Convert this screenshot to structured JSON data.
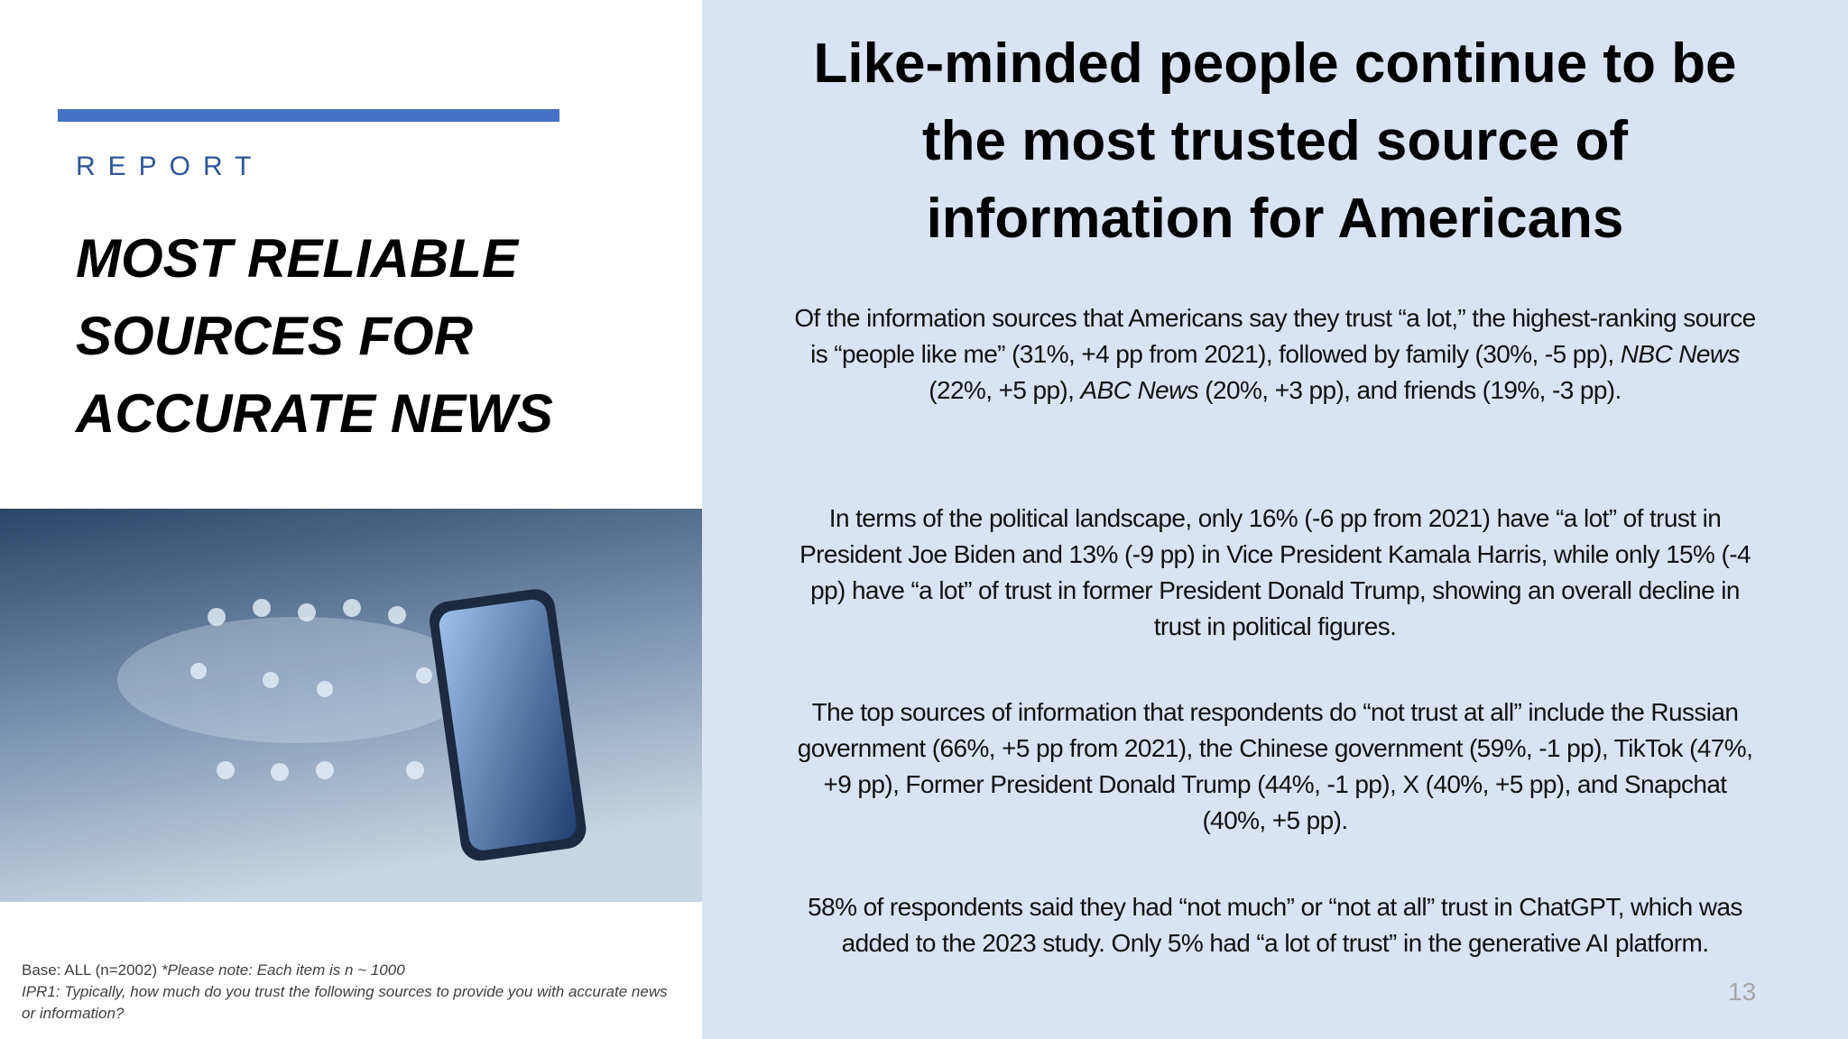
{
  "left": {
    "label": "REPORT",
    "title": [
      "MOST RELIABLE",
      "SOURCES FOR",
      "ACCURATE NEWS"
    ],
    "footnote": {
      "base": "Base: ALL (n=2002)",
      "note": "*Please note: Each item is n ~ 1000",
      "question": "IPR1: Typically, how much do you trust the following sources to provide you with accurate news or information?"
    }
  },
  "right": {
    "heading": [
      "Like-minded people continue to be",
      "the most trusted source of",
      "information for Americans"
    ],
    "paragraph_1": [
      "Of the information sources that Americans say they trust “a lot,” the highest-ranking source is “people like me” (31%, +4 pp from 2021), followed by family (30%, -5 pp), ",
      "NBC News",
      " (22%, +5 pp), ",
      "ABC News",
      " (20%, +3 pp), and friends (19%, -3 pp)."
    ],
    "paragraph_2": "In terms of the political landscape, only 16% (-6 pp from 2021) have “a lot” of trust in President Joe Biden and 13% (-9 pp) in Vice President Kamala Harris, while only 15% (-4 pp) have “a lot” of trust in former President Donald Trump, showing an overall decline in trust in political figures.",
    "paragraph_3": "The top sources of information that respondents do “not trust at all” include the Russian government (66%, +5 pp from 2021), the Chinese government (59%, -1 pp), TikTok (47%, +9 pp), Former President Donald Trump (44%, -1 pp), X (40%, +5 pp), and Snapchat (40%, +5 pp).",
    "paragraph_4": "58% of respondents said they had “not much” or “not at all” trust in ChatGPT, which was added to the 2023 study. Only 5% had “a lot of trust” in the generative AI platform.",
    "page_number": "13"
  }
}
